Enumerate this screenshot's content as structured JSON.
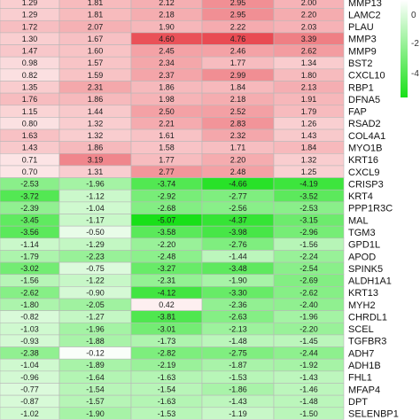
{
  "chart_data": {
    "type": "heatmap",
    "columns": 5,
    "rows": [
      {
        "gene": "MMP13",
        "values": [
          1.29,
          1.81,
          2.12,
          2.95,
          2.0
        ]
      },
      {
        "gene": "LAMC2",
        "values": [
          1.29,
          1.81,
          2.18,
          2.95,
          2.2
        ]
      },
      {
        "gene": "PLAU",
        "values": [
          1.72,
          2.07,
          1.9,
          2.22,
          2.03
        ]
      },
      {
        "gene": "MMP3",
        "values": [
          1.3,
          1.67,
          4.6,
          4.76,
          3.39
        ]
      },
      {
        "gene": "MMP9",
        "values": [
          1.47,
          1.6,
          2.45,
          2.46,
          2.62
        ]
      },
      {
        "gene": "BST2",
        "values": [
          0.98,
          1.57,
          2.34,
          1.77,
          1.34
        ]
      },
      {
        "gene": "CXCL10",
        "values": [
          0.82,
          1.59,
          2.37,
          2.99,
          1.8
        ]
      },
      {
        "gene": "RBP1",
        "values": [
          1.35,
          2.31,
          1.86,
          1.84,
          2.13
        ]
      },
      {
        "gene": "DFNA5",
        "values": [
          1.76,
          1.86,
          1.98,
          2.18,
          1.91
        ]
      },
      {
        "gene": "FAP",
        "values": [
          1.15,
          1.44,
          2.5,
          2.52,
          1.79
        ]
      },
      {
        "gene": "RSAD2",
        "values": [
          0.8,
          1.32,
          2.21,
          2.83,
          1.26
        ]
      },
      {
        "gene": "COL4A1",
        "values": [
          1.63,
          1.32,
          1.61,
          2.32,
          1.43
        ]
      },
      {
        "gene": "MYO1B",
        "values": [
          1.43,
          1.86,
          1.58,
          1.71,
          1.84
        ]
      },
      {
        "gene": "KRT16",
        "values": [
          0.71,
          3.19,
          1.77,
          2.2,
          1.32
        ]
      },
      {
        "gene": "CXCL9",
        "values": [
          0.7,
          1.31,
          2.77,
          2.48,
          1.25
        ]
      },
      {
        "gene": "CRISP3",
        "values": [
          -2.53,
          -1.96,
          -3.74,
          -4.66,
          -4.19
        ]
      },
      {
        "gene": "KRT4",
        "values": [
          -3.72,
          -1.12,
          -2.92,
          -2.77,
          -3.52
        ]
      },
      {
        "gene": "PPP1R3C",
        "values": [
          -2.39,
          -1.04,
          -2.68,
          -2.56,
          -2.53
        ]
      },
      {
        "gene": "MAL",
        "values": [
          -3.45,
          -1.17,
          -5.07,
          -4.37,
          -3.15
        ]
      },
      {
        "gene": "TGM3",
        "values": [
          -3.56,
          -0.5,
          -3.58,
          -3.98,
          -2.96
        ]
      },
      {
        "gene": "GPD1L",
        "values": [
          -1.14,
          -1.29,
          -2.2,
          -2.76,
          -1.56
        ]
      },
      {
        "gene": "APOD",
        "values": [
          -1.79,
          -2.23,
          -2.48,
          -1.44,
          -2.24
        ]
      },
      {
        "gene": "SPINK5",
        "values": [
          -3.02,
          -0.75,
          -3.27,
          -3.48,
          -2.54
        ]
      },
      {
        "gene": "ALDH1A1",
        "values": [
          -1.56,
          -1.22,
          -2.31,
          -1.9,
          -2.69
        ]
      },
      {
        "gene": "KRT13",
        "values": [
          -2.62,
          -0.9,
          -4.12,
          -3.3,
          -2.62
        ]
      },
      {
        "gene": "MYH2",
        "values": [
          -1.8,
          -2.05,
          0.42,
          -2.36,
          -2.4
        ]
      },
      {
        "gene": "CHRDL1",
        "values": [
          -0.82,
          -1.27,
          -3.81,
          -2.63,
          -1.96
        ]
      },
      {
        "gene": "SCEL",
        "values": [
          -1.03,
          -1.96,
          -3.01,
          -2.13,
          -2.2
        ]
      },
      {
        "gene": "TGFBR3",
        "values": [
          -0.93,
          -1.88,
          -1.73,
          -1.48,
          -1.45
        ]
      },
      {
        "gene": "ADH7",
        "values": [
          -2.38,
          -0.12,
          -2.82,
          -2.75,
          -2.44
        ]
      },
      {
        "gene": "ADH1B",
        "values": [
          -1.04,
          -1.89,
          -2.19,
          -1.87,
          -1.92
        ]
      },
      {
        "gene": "FHL1",
        "values": [
          -0.96,
          -1.64,
          -1.63,
          -1.53,
          -1.43
        ]
      },
      {
        "gene": "MFAP4",
        "values": [
          -0.77,
          -1.54,
          -1.54,
          -1.86,
          -1.46
        ]
      },
      {
        "gene": "DPT",
        "values": [
          -0.87,
          -1.57,
          -1.63,
          -1.43,
          -1.48
        ]
      },
      {
        "gene": "SELENBP1",
        "values": [
          -1.02,
          -1.9,
          -1.53,
          -1.19,
          -1.5
        ]
      }
    ],
    "legend": {
      "ticks": [
        "0",
        "-2",
        "-4"
      ],
      "position": "right"
    },
    "color_scale": {
      "positive_max": 5,
      "negative_max": -5,
      "positive_color": "#e8424a",
      "negative_color": "#18e018",
      "zero_color": "#ffffff"
    }
  }
}
